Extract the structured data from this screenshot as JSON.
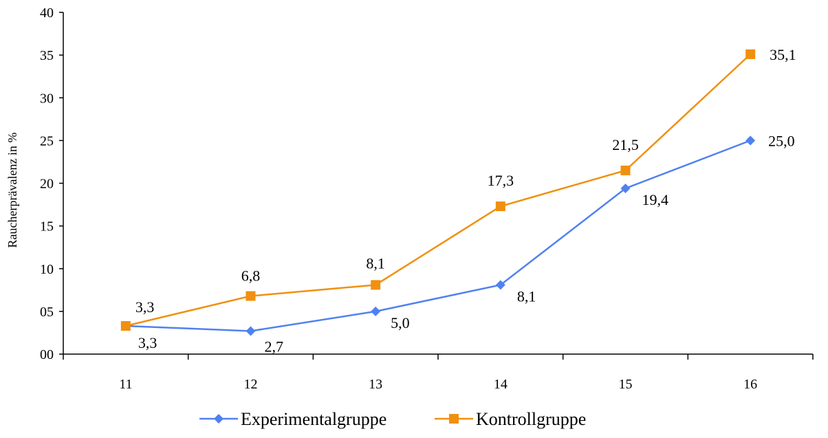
{
  "chart_data": {
    "type": "line",
    "ylabel": "Raucherprävalenz in %",
    "xlabel": "",
    "categories": [
      "11",
      "12",
      "13",
      "14",
      "15",
      "16"
    ],
    "ylim": [
      0,
      40
    ],
    "y_ticks": [
      "00",
      "05",
      "10",
      "15",
      "20",
      "25",
      "30",
      "35",
      "40"
    ],
    "grid": false,
    "legend_position": "bottom",
    "series": [
      {
        "name": "Experimentalgruppe",
        "color": "#4f81f0",
        "marker": "diamond",
        "values": [
          3.3,
          2.7,
          5.0,
          8.1,
          19.4,
          25.0
        ],
        "labels": [
          "3,3",
          "2,7",
          "5,0",
          "8,1",
          "19,4",
          "25,0"
        ]
      },
      {
        "name": "Kontrollgruppe",
        "color": "#f0900f",
        "marker": "square",
        "values": [
          3.3,
          6.8,
          8.1,
          17.3,
          21.5,
          35.1
        ],
        "labels": [
          "3,3",
          "6,8",
          "8,1",
          "17,3",
          "21,5",
          "35,1"
        ]
      }
    ]
  }
}
